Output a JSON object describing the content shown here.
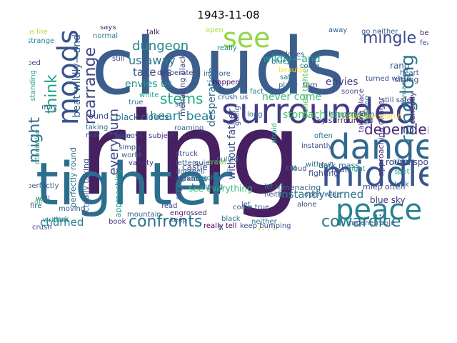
{
  "title": "1943-11-08",
  "words": [
    {
      "text": "clouds",
      "color": "#3b5e8c"
    },
    {
      "text": "ring",
      "color": "#462060"
    },
    {
      "text": "tighter",
      "color": "#2c6e8e"
    },
    {
      "text": "surrounded",
      "color": "#433d84"
    },
    {
      "text": "danger",
      "color": "#31688e"
    },
    {
      "text": "middle",
      "color": "#39568c"
    },
    {
      "text": "peace",
      "color": "#26828e"
    },
    {
      "text": "moods",
      "color": "#3a548c"
    },
    {
      "text": "see",
      "color": "#8fd744"
    },
    {
      "text": "mingle",
      "color": "#3e4989"
    },
    {
      "text": "rang long",
      "color": "#2a788e"
    },
    {
      "text": "think",
      "color": "#1f9e89"
    },
    {
      "text": "rearrange",
      "color": "#414487"
    },
    {
      "text": "dependent",
      "color": "#482878"
    },
    {
      "text": "stems",
      "color": "#22a884"
    },
    {
      "text": "confronts",
      "color": "#2c728e"
    },
    {
      "text": "cowardice",
      "color": "#2a788e"
    },
    {
      "text": "might",
      "color": "#2e6f8e"
    },
    {
      "text": "every turn",
      "color": "#3f4788"
    },
    {
      "text": "one sitting",
      "color": "#bddf26"
    },
    {
      "text": "heart beat",
      "color": "#25838e"
    },
    {
      "text": "dungeon",
      "color": "#24868e"
    },
    {
      "text": "us away",
      "color": "#2a778e"
    },
    {
      "text": "take us",
      "color": "#3b528b"
    },
    {
      "text": "envies us",
      "color": "#21918c"
    },
    {
      "text": "wildly—and",
      "color": "#20a486"
    },
    {
      "text": "beat wildly—and",
      "color": "#355f8d"
    },
    {
      "text": "desperation",
      "color": "#2f6c8e"
    },
    {
      "text": "without father",
      "color": "#3e4a89"
    },
    {
      "text": "stomach churned",
      "color": "#4ac16d"
    },
    {
      "text": "instantly turned",
      "color": "#2b748e"
    },
    {
      "text": "churned",
      "color": "#287d8e"
    },
    {
      "text": "approaching danger",
      "color": "#46317e"
    },
    {
      "text": "pulled tighter",
      "color": "#5ec962"
    },
    {
      "text": "menacing black",
      "color": "#424086"
    },
    {
      "text": "black clouds",
      "color": "#2d708e"
    },
    {
      "text": "never come",
      "color": "#3aba76"
    },
    {
      "text": "round spot",
      "color": "#3f4889"
    },
    {
      "text": "miep often",
      "color": "#404588"
    },
    {
      "text": "sky surrounded",
      "color": "#46307e"
    },
    {
      "text": "see everything",
      "color": "#35b779"
    },
    {
      "text": "perfectly round",
      "color": "#2c738e"
    },
    {
      "text": "actually taking",
      "color": "#3a548c"
    },
    {
      "text": "castle",
      "color": "#3d4d8a"
    },
    {
      "text": "blue sky",
      "color": "#46337f"
    },
    {
      "text": "envies",
      "color": "#433e85"
    },
    {
      "text": "round",
      "color": "#3c4f8a"
    },
    {
      "text": "menacing",
      "color": "#33638d"
    },
    {
      "text": "dark mass",
      "color": "#365c8d"
    },
    {
      "text": "approaching",
      "color": "#1e9b8a"
    },
    {
      "text": "rang",
      "color": "#38588c"
    },
    {
      "text": "sitting",
      "color": "#3c508b"
    },
    {
      "text": "fighting",
      "color": "#3e4989"
    },
    {
      "text": "us like",
      "color": "#b5de2b"
    },
    {
      "text": "strange",
      "color": "#24868e"
    },
    {
      "text": "says",
      "color": "#482475"
    },
    {
      "text": "normal",
      "color": "#277f8e"
    },
    {
      "text": "talk",
      "color": "#481668"
    },
    {
      "text": "open",
      "color": "#a8db34"
    },
    {
      "text": "away",
      "color": "#35608d"
    },
    {
      "text": "bep",
      "color": "#482173"
    },
    {
      "text": "fear",
      "color": "#3e4989"
    },
    {
      "text": "really",
      "color": "#23898e"
    },
    {
      "text": "loves",
      "color": "#365c8d"
    },
    {
      "text": "safe",
      "color": "#2c728e"
    },
    {
      "text": "place",
      "color": "#2f6b8e"
    },
    {
      "text": "implore",
      "color": "#355e8d"
    },
    {
      "text": "happen",
      "color": "#46085c"
    },
    {
      "text": "fact",
      "color": "#287d8e"
    },
    {
      "text": "soon",
      "color": "#3b528b"
    },
    {
      "text": "still safe",
      "color": "#404688"
    },
    {
      "text": "turned white",
      "color": "#3b518b"
    },
    {
      "text": "stomach",
      "color": "#2e6d8e"
    },
    {
      "text": "thinking",
      "color": "#2a788e"
    },
    {
      "text": "crush us",
      "color": "#34618d"
    },
    {
      "text": "heart",
      "color": "#39568c"
    },
    {
      "text": "true",
      "color": "#2c718e"
    },
    {
      "text": "white",
      "color": "#1fa088"
    },
    {
      "text": "annoys",
      "color": "#433d84"
    },
    {
      "text": "simply",
      "color": "#3b518b"
    },
    {
      "text": "world",
      "color": "#32658e"
    },
    {
      "text": "variety",
      "color": "#472d7b"
    },
    {
      "text": "patch",
      "color": "#2d718e"
    },
    {
      "text": "struck",
      "color": "#3d4e8a"
    },
    {
      "text": "letters",
      "color": "#375a8c"
    },
    {
      "text": "doorbell",
      "color": "#355f8d"
    },
    {
      "text": "search",
      "color": "#20928c"
    },
    {
      "text": "bumping",
      "color": "#2c728e"
    },
    {
      "text": "darkness",
      "color": "#3f4788"
    },
    {
      "text": "roaming",
      "color": "#31688e"
    },
    {
      "text": "crawl",
      "color": "#86d549"
    },
    {
      "text": "engrossed",
      "color": "#482576"
    },
    {
      "text": "taking",
      "color": "#2e6e8e"
    },
    {
      "text": "mar",
      "color": "#3b528b"
    },
    {
      "text": "wide",
      "color": "#3a548c"
    },
    {
      "text": "book",
      "color": "#472e7c"
    },
    {
      "text": "read",
      "color": "#3f4788"
    },
    {
      "text": "wall",
      "color": "#2d708e"
    },
    {
      "text": "written",
      "color": "#1e9b8a"
    },
    {
      "text": "crush",
      "color": "#3e4c8a"
    },
    {
      "text": "dark",
      "color": "#2b758e"
    },
    {
      "text": "air",
      "color": "#4cc26c"
    },
    {
      "text": "moving",
      "color": "#365d8d"
    },
    {
      "text": "standing",
      "color": "#1fa287"
    },
    {
      "text": "fire",
      "color": "#3b528b"
    },
    {
      "text": "really tell",
      "color": "#440154"
    },
    {
      "text": "keep bumping",
      "color": "#3f4889"
    },
    {
      "text": "impenetrable",
      "color": "#34608d"
    },
    {
      "text": "come true",
      "color": "#38588c"
    },
    {
      "text": "neither",
      "color": "#3f4788"
    },
    {
      "text": "let us",
      "color": "#2c738e"
    },
    {
      "text": "alone",
      "color": "#3f4889"
    },
    {
      "text": "open wide",
      "color": "#33628d"
    },
    {
      "text": "night",
      "color": "#1f9f88"
    },
    {
      "text": "beat",
      "color": "#3e4a89"
    },
    {
      "text": "look",
      "color": "#31688e"
    },
    {
      "text": "spot",
      "color": "#25ab82"
    },
    {
      "text": "able",
      "color": "#3b528b"
    },
    {
      "text": "bed",
      "color": "#3d4d8a"
    },
    {
      "text": "cut",
      "color": "#287c8e"
    },
    {
      "text": "often",
      "color": "#2c738e"
    },
    {
      "text": "desperate",
      "color": "#424186"
    },
    {
      "text": "desperate search",
      "color": "#fde725"
    },
    {
      "text": "happen soon",
      "color": "#2f6b8e"
    },
    {
      "text": "blue",
      "color": "#2a768e"
    },
    {
      "text": "loud",
      "color": "#3f4889"
    },
    {
      "text": "come",
      "color": "#31688e"
    },
    {
      "text": "turn",
      "color": "#433e85"
    },
    {
      "text": "afraid",
      "color": "#21a685"
    },
    {
      "text": "quiet",
      "color": "#3e4a89"
    },
    {
      "text": "mountain",
      "color": "#32658e"
    },
    {
      "text": "subject",
      "color": "#453581"
    },
    {
      "text": "keep",
      "color": "#3d4e8a"
    },
    {
      "text": "perfectly",
      "color": "#355e8d"
    },
    {
      "text": "otherwise",
      "color": "#1fa188"
    },
    {
      "text": "may",
      "color": "#3c4f8a"
    },
    {
      "text": "without",
      "color": "#2c718e"
    },
    {
      "text": "instantly",
      "color": "#3f4788"
    },
    {
      "text": "yet",
      "color": "#34618d"
    },
    {
      "text": "black",
      "color": "#2d718e"
    },
    {
      "text": "oh",
      "color": "#2c728e"
    },
    {
      "text": "say",
      "color": "#443a83"
    },
    {
      "text": "going",
      "color": "#3e4a89"
    },
    {
      "text": "pulled",
      "color": "#2f6c8e"
    },
    {
      "text": "long",
      "color": "#2a788e"
    },
    {
      "text": "let",
      "color": "#32658e"
    },
    {
      "text": "set",
      "color": "#365d8d"
    },
    {
      "text": "still",
      "color": "#3b518b"
    },
    {
      "text": "go neither",
      "color": "#38588c"
    },
    {
      "text": "currently",
      "color": "#472d7b"
    },
    {
      "text": "taking place",
      "color": "#482576"
    },
    {
      "text": "beauty",
      "color": "#fde725"
    },
    {
      "text": "neither",
      "color": "#2c728e"
    }
  ]
}
